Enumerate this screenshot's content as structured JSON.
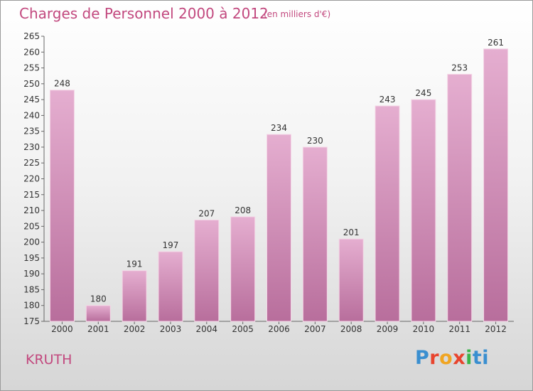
{
  "header": {
    "title": "Charges de Personnel 2000 à 2012",
    "unit": "(en milliers d'€)"
  },
  "footer": {
    "commune": "KRUTH",
    "logo_text": "Proxiti"
  },
  "chart_data": {
    "type": "bar",
    "title": "Charges de Personnel 2000 à 2012",
    "subtitle": "(en milliers d'€)",
    "xlabel": "",
    "ylabel": "",
    "categories": [
      "2000",
      "2001",
      "2002",
      "2003",
      "2004",
      "2005",
      "2006",
      "2007",
      "2008",
      "2009",
      "2010",
      "2011",
      "2012"
    ],
    "values": [
      248,
      180,
      191,
      197,
      207,
      208,
      234,
      230,
      201,
      243,
      245,
      253,
      261
    ],
    "ylim": [
      175,
      265
    ],
    "yticks": [
      175,
      180,
      185,
      190,
      195,
      200,
      205,
      210,
      215,
      220,
      225,
      230,
      235,
      240,
      245,
      250,
      255,
      260,
      265
    ],
    "grid": false,
    "legend": "none",
    "colors": {
      "bar": "#d99bbf",
      "bar_dark": "#b86a98",
      "text": "#c2487e"
    }
  }
}
